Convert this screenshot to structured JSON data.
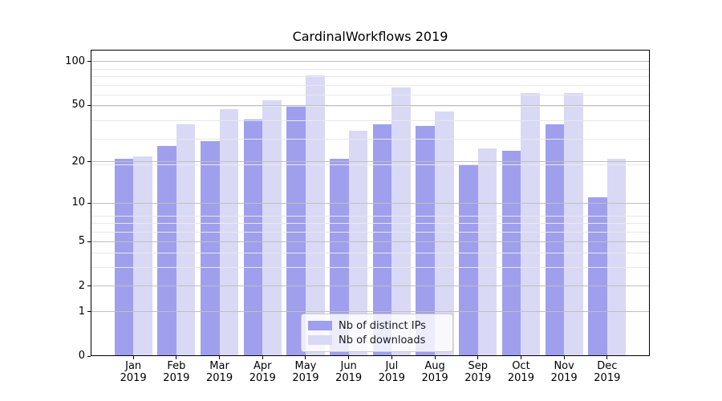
{
  "title": "CardinalWorkflows 2019",
  "chart_data": {
    "type": "bar",
    "title": "CardinalWorkflows 2019",
    "categories": [
      "Jan 2019",
      "Feb 2019",
      "Mar 2019",
      "Apr 2019",
      "May 2019",
      "Jun 2019",
      "Jul 2019",
      "Aug 2019",
      "Sep 2019",
      "Oct 2019",
      "Nov 2019",
      "Dec 2019"
    ],
    "x_labels": {
      "months": [
        "Jan",
        "Feb",
        "Mar",
        "Apr",
        "May",
        "Jun",
        "Jul",
        "Aug",
        "Sep",
        "Oct",
        "Nov",
        "Dec"
      ],
      "year": "2019"
    },
    "series": [
      {
        "name": "Nb of distinct IPs",
        "color": "#9f9fee",
        "values": [
          21,
          26,
          28,
          40,
          49,
          21,
          37,
          36,
          19,
          24,
          37,
          11
        ]
      },
      {
        "name": "Nb of downloads",
        "color": "#d9d9f6",
        "values": [
          22,
          37,
          47,
          54,
          80,
          33,
          66,
          45,
          25,
          61,
          61,
          21
        ]
      }
    ],
    "yscale": "log1p",
    "ylabel": "",
    "xlabel": "",
    "y_major_ticks": [
      0,
      1,
      2,
      5,
      10,
      20,
      50,
      100
    ],
    "y_minor_ticks": [
      3,
      4,
      6,
      7,
      8,
      19,
      29,
      39,
      49,
      59,
      69,
      79,
      89
    ],
    "ylim": [
      0,
      120.7
    ],
    "grid": true,
    "grid_major_color": "#bfbfbf",
    "grid_minor_color": "#e8e8e8",
    "legend_position": "lower center",
    "background_color": "#ffffff"
  }
}
